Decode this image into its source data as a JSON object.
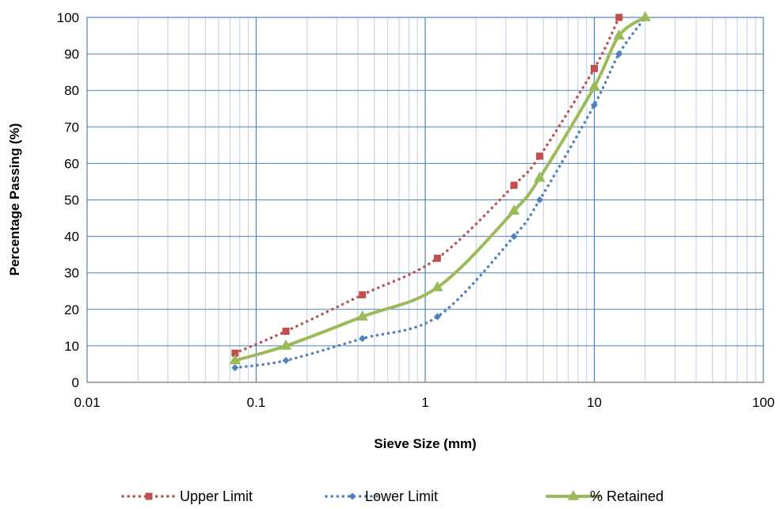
{
  "chart_data": {
    "type": "line",
    "xlabel": "Sieve Size (mm)",
    "ylabel": "Percentage Passing (%)",
    "x_scale": "log",
    "xlim": [
      0.01,
      100
    ],
    "ylim": [
      0,
      100
    ],
    "x_ticks": [
      "0.01",
      "0.1",
      "1",
      "10",
      "100"
    ],
    "y_ticks": [
      "0",
      "10",
      "20",
      "30",
      "40",
      "50",
      "60",
      "70",
      "80",
      "90",
      "100"
    ],
    "grid": true,
    "legend_position": "bottom",
    "series": [
      {
        "name": "Upper Limit",
        "color": "#C0504D",
        "line_style": "dotted",
        "marker": "square",
        "x": [
          0.075,
          0.15,
          0.425,
          1.18,
          3.35,
          4.75,
          10,
          14
        ],
        "y": [
          8,
          14,
          24,
          34,
          54,
          62,
          86,
          100
        ]
      },
      {
        "name": "Lower Limit",
        "color": "#4F81BD",
        "line_style": "dotted",
        "marker": "diamond",
        "x": [
          0.075,
          0.15,
          0.425,
          1.18,
          3.35,
          4.75,
          10,
          14,
          20
        ],
        "y": [
          4,
          6,
          12,
          18,
          40,
          50,
          76,
          90,
          100
        ]
      },
      {
        "name": "% Retained",
        "color": "#9BBB59",
        "line_style": "solid",
        "marker": "triangle",
        "x": [
          0.075,
          0.15,
          0.425,
          1.18,
          3.35,
          4.75,
          10,
          14,
          20
        ],
        "y": [
          6,
          10,
          18,
          26,
          47,
          56,
          81,
          95,
          100
        ]
      }
    ]
  }
}
